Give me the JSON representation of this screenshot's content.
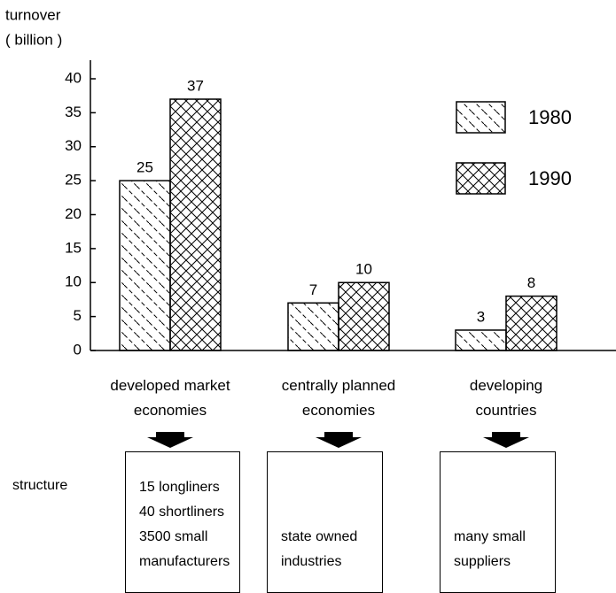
{
  "chart_data": {
    "type": "bar",
    "y_label": [
      "turnover",
      "( billion )"
    ],
    "categories": [
      "developed market economies",
      "centrally planned economies",
      "developing countries"
    ],
    "series": [
      {
        "name": "1980",
        "color": "#000",
        "hatch": "dashed-diagonal",
        "values": [
          25,
          7,
          3
        ]
      },
      {
        "name": "1990",
        "color": "#000",
        "hatch": "crosshatch",
        "values": [
          37,
          10,
          8
        ]
      }
    ],
    "ylim": [
      0,
      40
    ],
    "yticks": [
      0,
      5,
      10,
      15,
      20,
      25,
      30,
      35,
      40
    ],
    "legend": "upper right"
  },
  "structure": {
    "label": "structure",
    "boxes": [
      [
        "15 longliners",
        "40 shortliners",
        "3500 small",
        "manufacturers"
      ],
      [
        "state owned",
        "industries"
      ],
      [
        "many small",
        "suppliers"
      ]
    ]
  }
}
